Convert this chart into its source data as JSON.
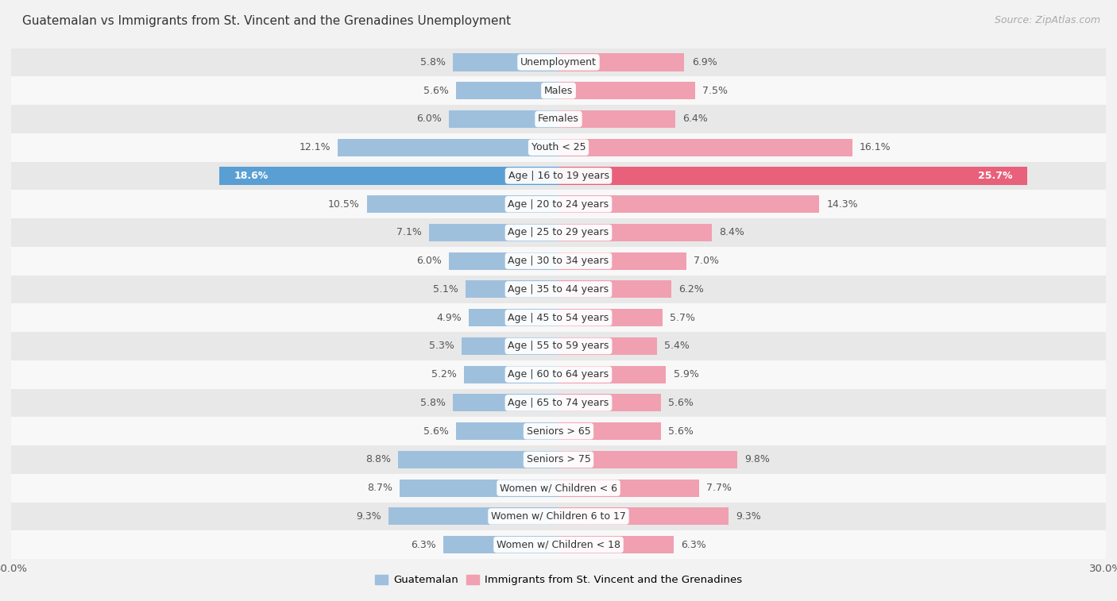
{
  "title": "Guatemalan vs Immigrants from St. Vincent and the Grenadines Unemployment",
  "source": "Source: ZipAtlas.com",
  "categories": [
    "Unemployment",
    "Males",
    "Females",
    "Youth < 25",
    "Age | 16 to 19 years",
    "Age | 20 to 24 years",
    "Age | 25 to 29 years",
    "Age | 30 to 34 years",
    "Age | 35 to 44 years",
    "Age | 45 to 54 years",
    "Age | 55 to 59 years",
    "Age | 60 to 64 years",
    "Age | 65 to 74 years",
    "Seniors > 65",
    "Seniors > 75",
    "Women w/ Children < 6",
    "Women w/ Children 6 to 17",
    "Women w/ Children < 18"
  ],
  "guatemalan": [
    5.8,
    5.6,
    6.0,
    12.1,
    18.6,
    10.5,
    7.1,
    6.0,
    5.1,
    4.9,
    5.3,
    5.2,
    5.8,
    5.6,
    8.8,
    8.7,
    9.3,
    6.3
  ],
  "immigrants": [
    6.9,
    7.5,
    6.4,
    16.1,
    25.7,
    14.3,
    8.4,
    7.0,
    6.2,
    5.7,
    5.4,
    5.9,
    5.6,
    5.6,
    9.8,
    7.7,
    9.3,
    6.3
  ],
  "guatemalan_color": "#9ec0dd",
  "immigrants_color": "#f0a0b0",
  "guatemalan_highlight_color": "#5a9fd4",
  "immigrants_highlight_color": "#e8607a",
  "highlight_row": 4,
  "xlim": 30.0,
  "bar_height": 0.62,
  "bg_color": "#f2f2f2",
  "row_colors": [
    "#e8e8e8",
    "#f8f8f8"
  ],
  "legend_guatemalan": "Guatemalan",
  "legend_immigrants": "Immigrants from St. Vincent and the Grenadines",
  "title_fontsize": 11,
  "source_fontsize": 9,
  "label_fontsize": 9,
  "value_fontsize": 9
}
